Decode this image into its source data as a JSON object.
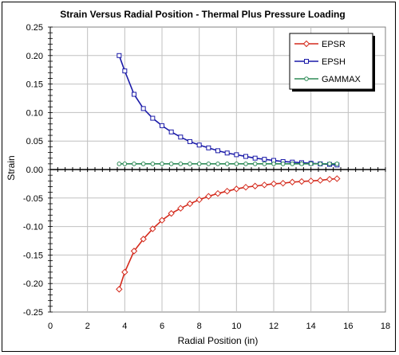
{
  "chart_data": {
    "type": "line",
    "title": "Strain Versus Radial Position - Thermal Plus Pressure Loading",
    "xlabel": "Radial Position (in)",
    "ylabel": "Strain",
    "xlim": [
      0,
      18
    ],
    "ylim": [
      -0.25,
      0.25
    ],
    "xticks": [
      0,
      2,
      4,
      6,
      8,
      10,
      12,
      14,
      16,
      18
    ],
    "yticks": [
      -0.25,
      -0.2,
      -0.15,
      -0.1,
      -0.05,
      0.0,
      0.05,
      0.1,
      0.15,
      0.2,
      0.25
    ],
    "xtick_labels": [
      "0",
      "2",
      "4",
      "6",
      "8",
      "10",
      "12",
      "14",
      "16",
      "18"
    ],
    "ytick_labels": [
      "-0.25",
      "-0.20",
      "-0.15",
      "-0.10",
      "-0.05",
      "0.00",
      "0.05",
      "0.10",
      "0.15",
      "0.20",
      "0.25"
    ],
    "grid": true,
    "legend_position": "top-right",
    "series": [
      {
        "name": "EPSR",
        "color": "#d42a1c",
        "marker": "diamond",
        "x": [
          3.7,
          4.0,
          4.5,
          5.0,
          5.5,
          6.0,
          6.5,
          7.0,
          7.5,
          8.0,
          8.5,
          9.0,
          9.5,
          10.0,
          10.5,
          11.0,
          11.5,
          12.0,
          12.5,
          13.0,
          13.5,
          14.0,
          14.5,
          15.0,
          15.4
        ],
        "y": [
          -0.21,
          -0.18,
          -0.143,
          -0.122,
          -0.104,
          -0.089,
          -0.077,
          -0.068,
          -0.06,
          -0.053,
          -0.047,
          -0.042,
          -0.038,
          -0.034,
          -0.031,
          -0.029,
          -0.027,
          -0.025,
          -0.024,
          -0.022,
          -0.021,
          -0.02,
          -0.019,
          -0.017,
          -0.016
        ]
      },
      {
        "name": "EPSH",
        "color": "#1a1aa8",
        "marker": "square",
        "x": [
          3.7,
          4.0,
          4.5,
          5.0,
          5.5,
          6.0,
          6.5,
          7.0,
          7.5,
          8.0,
          8.5,
          9.0,
          9.5,
          10.0,
          10.5,
          11.0,
          11.5,
          12.0,
          12.5,
          13.0,
          13.5,
          14.0,
          14.5,
          15.0,
          15.4
        ],
        "y": [
          0.2,
          0.173,
          0.132,
          0.107,
          0.09,
          0.077,
          0.066,
          0.057,
          0.049,
          0.043,
          0.038,
          0.033,
          0.029,
          0.026,
          0.023,
          0.02,
          0.018,
          0.016,
          0.014,
          0.013,
          0.012,
          0.011,
          0.01,
          0.009,
          0.008
        ]
      },
      {
        "name": "GAMMAX",
        "color": "#2e8b57",
        "marker": "circle",
        "x": [
          3.7,
          4.0,
          4.5,
          5.0,
          5.5,
          6.0,
          6.5,
          7.0,
          7.5,
          8.0,
          8.5,
          9.0,
          9.5,
          10.0,
          10.5,
          11.0,
          11.5,
          12.0,
          12.5,
          13.0,
          13.5,
          14.0,
          14.5,
          15.0,
          15.4
        ],
        "y": [
          0.01,
          0.01,
          0.01,
          0.01,
          0.01,
          0.01,
          0.01,
          0.01,
          0.01,
          0.01,
          0.01,
          0.01,
          0.01,
          0.01,
          0.01,
          0.01,
          0.01,
          0.01,
          0.01,
          0.01,
          0.01,
          0.01,
          0.01,
          0.01,
          0.01
        ]
      }
    ]
  }
}
